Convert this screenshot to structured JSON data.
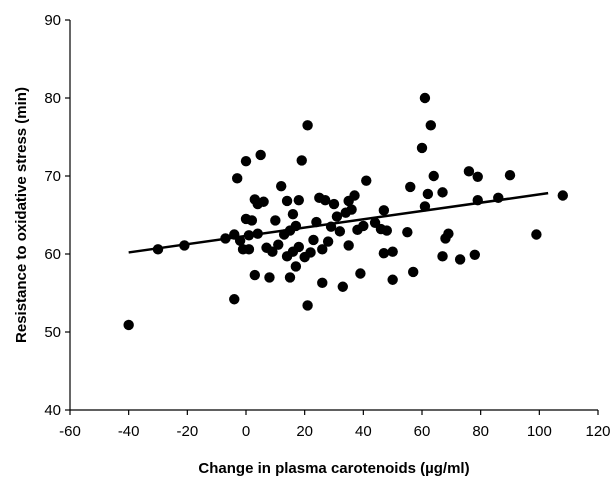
{
  "chart_data": {
    "type": "scatter",
    "xlabel": "Change in plasma carotenoids (µg/ml)",
    "ylabel": "Resistance to oxidative stress (min)",
    "xlim": [
      -60,
      120
    ],
    "ylim": [
      40,
      90
    ],
    "x_ticks": [
      -60,
      -40,
      -20,
      0,
      20,
      40,
      60,
      80,
      100,
      120
    ],
    "y_ticks": [
      40,
      50,
      60,
      70,
      80,
      90
    ],
    "grid": false,
    "legend": "none",
    "marker_color": "#000000",
    "points": [
      {
        "x": -40,
        "y": 50.9
      },
      {
        "x": -30,
        "y": 60.6
      },
      {
        "x": -21,
        "y": 61.1
      },
      {
        "x": -7,
        "y": 62.0
      },
      {
        "x": -4,
        "y": 54.2
      },
      {
        "x": -4,
        "y": 62.5
      },
      {
        "x": -3,
        "y": 69.7
      },
      {
        "x": -2,
        "y": 61.7
      },
      {
        "x": -1,
        "y": 60.6
      },
      {
        "x": 0,
        "y": 64.5
      },
      {
        "x": 0,
        "y": 71.9
      },
      {
        "x": 1,
        "y": 62.4
      },
      {
        "x": 1,
        "y": 60.6
      },
      {
        "x": 2,
        "y": 64.3
      },
      {
        "x": 3,
        "y": 67.0
      },
      {
        "x": 3,
        "y": 57.3
      },
      {
        "x": 4,
        "y": 62.6
      },
      {
        "x": 4,
        "y": 66.4
      },
      {
        "x": 5,
        "y": 72.7
      },
      {
        "x": 6,
        "y": 66.7
      },
      {
        "x": 7,
        "y": 60.8
      },
      {
        "x": 8,
        "y": 57.0
      },
      {
        "x": 9,
        "y": 60.3
      },
      {
        "x": 10,
        "y": 64.3
      },
      {
        "x": 11,
        "y": 61.2
      },
      {
        "x": 12,
        "y": 68.7
      },
      {
        "x": 13,
        "y": 62.5
      },
      {
        "x": 14,
        "y": 59.7
      },
      {
        "x": 14,
        "y": 66.8
      },
      {
        "x": 15,
        "y": 63.0
      },
      {
        "x": 15,
        "y": 57.0
      },
      {
        "x": 16,
        "y": 65.1
      },
      {
        "x": 16,
        "y": 60.3
      },
      {
        "x": 17,
        "y": 63.6
      },
      {
        "x": 17,
        "y": 58.4
      },
      {
        "x": 18,
        "y": 60.9
      },
      {
        "x": 18,
        "y": 66.9
      },
      {
        "x": 19,
        "y": 72.0
      },
      {
        "x": 20,
        "y": 59.6
      },
      {
        "x": 21,
        "y": 76.5
      },
      {
        "x": 21,
        "y": 53.4
      },
      {
        "x": 22,
        "y": 60.2
      },
      {
        "x": 23,
        "y": 61.8
      },
      {
        "x": 24,
        "y": 64.1
      },
      {
        "x": 25,
        "y": 67.2
      },
      {
        "x": 26,
        "y": 60.6
      },
      {
        "x": 26,
        "y": 56.3
      },
      {
        "x": 27,
        "y": 66.9
      },
      {
        "x": 28,
        "y": 61.6
      },
      {
        "x": 29,
        "y": 63.5
      },
      {
        "x": 30,
        "y": 66.4
      },
      {
        "x": 31,
        "y": 64.8
      },
      {
        "x": 32,
        "y": 62.9
      },
      {
        "x": 33,
        "y": 55.8
      },
      {
        "x": 34,
        "y": 65.3
      },
      {
        "x": 35,
        "y": 61.1
      },
      {
        "x": 35,
        "y": 66.8
      },
      {
        "x": 36,
        "y": 65.7
      },
      {
        "x": 37,
        "y": 67.5
      },
      {
        "x": 38,
        "y": 63.1
      },
      {
        "x": 39,
        "y": 57.5
      },
      {
        "x": 40,
        "y": 63.6
      },
      {
        "x": 41,
        "y": 69.4
      },
      {
        "x": 44,
        "y": 64.0
      },
      {
        "x": 46,
        "y": 63.2
      },
      {
        "x": 47,
        "y": 65.6
      },
      {
        "x": 47,
        "y": 60.1
      },
      {
        "x": 48,
        "y": 63.0
      },
      {
        "x": 50,
        "y": 56.7
      },
      {
        "x": 50,
        "y": 60.3
      },
      {
        "x": 55,
        "y": 62.8
      },
      {
        "x": 56,
        "y": 68.6
      },
      {
        "x": 57,
        "y": 57.7
      },
      {
        "x": 60,
        "y": 73.6
      },
      {
        "x": 61,
        "y": 80.0
      },
      {
        "x": 61,
        "y": 66.1
      },
      {
        "x": 62,
        "y": 67.7
      },
      {
        "x": 63,
        "y": 76.5
      },
      {
        "x": 64,
        "y": 70.0
      },
      {
        "x": 67,
        "y": 59.7
      },
      {
        "x": 67,
        "y": 67.9
      },
      {
        "x": 68,
        "y": 62.0
      },
      {
        "x": 69,
        "y": 62.6
      },
      {
        "x": 73,
        "y": 59.3
      },
      {
        "x": 76,
        "y": 70.6
      },
      {
        "x": 78,
        "y": 59.9
      },
      {
        "x": 79,
        "y": 69.9
      },
      {
        "x": 79,
        "y": 66.9
      },
      {
        "x": 86,
        "y": 67.2
      },
      {
        "x": 90,
        "y": 70.1
      },
      {
        "x": 99,
        "y": 62.5
      },
      {
        "x": 108,
        "y": 67.5
      }
    ],
    "trendline": {
      "x": [
        -40,
        103
      ],
      "y": [
        60.2,
        67.8
      ]
    }
  }
}
